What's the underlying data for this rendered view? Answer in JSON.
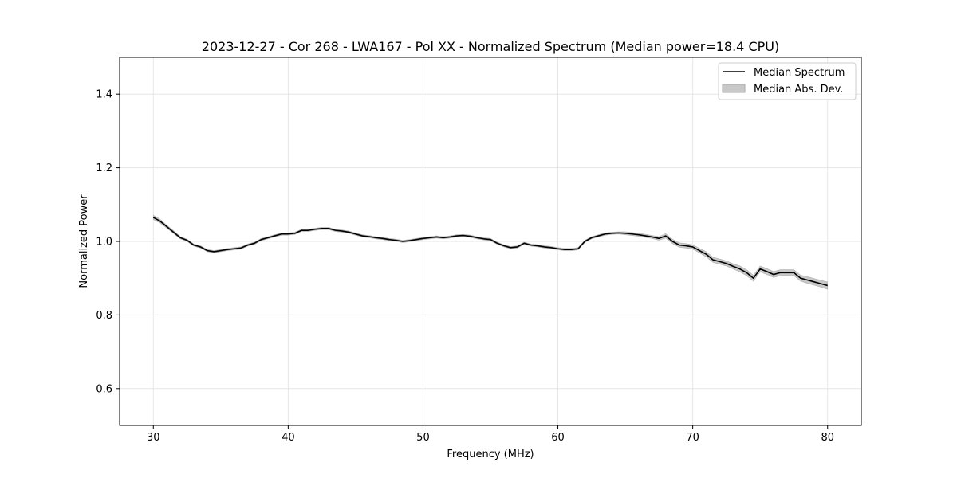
{
  "chart_data": {
    "type": "line",
    "title": "2023-12-27 - Cor 268 - LWA167 - Pol XX - Normalized Spectrum (Median power=18.4 CPU)",
    "xlabel": "Frequency (MHz)",
    "ylabel": "Normalized Power",
    "xlim": [
      27.5,
      82.5
    ],
    "ylim": [
      0.5,
      1.5
    ],
    "grid": true,
    "legend_position": "top-right",
    "x_ticks": [
      30,
      40,
      50,
      60,
      70,
      80
    ],
    "y_ticks": [
      0.6,
      0.8,
      1.0,
      1.2,
      1.4
    ],
    "x_tick_labels": [
      "30",
      "40",
      "50",
      "60",
      "70",
      "80"
    ],
    "y_tick_labels": [
      "0.6",
      "0.8",
      "1.0",
      "1.2",
      "1.4"
    ],
    "legend": {
      "line_label": "Median Spectrum",
      "band_label": "Median Abs. Dev."
    },
    "series": [
      {
        "name": "Median Spectrum",
        "color": "#000000",
        "x": [
          30,
          30.5,
          31,
          31.5,
          32,
          32.5,
          33,
          33.5,
          34,
          34.5,
          35,
          35.5,
          36,
          36.5,
          37,
          37.5,
          38,
          38.5,
          39,
          39.5,
          40,
          40.5,
          41,
          41.5,
          42,
          42.5,
          43,
          43.5,
          44,
          44.5,
          45,
          45.5,
          46,
          46.5,
          47,
          47.5,
          48,
          48.5,
          49,
          49.5,
          50,
          50.5,
          51,
          51.5,
          52,
          52.5,
          53,
          53.5,
          54,
          54.5,
          55,
          55.5,
          56,
          56.5,
          57,
          57.5,
          58,
          58.5,
          59,
          59.5,
          60,
          60.5,
          61,
          61.5,
          62,
          62.5,
          63,
          63.5,
          64,
          64.5,
          65,
          65.5,
          66,
          66.5,
          67,
          67.5,
          68,
          68.5,
          69,
          69.5,
          70,
          70.5,
          71,
          71.5,
          72,
          72.5,
          73,
          73.5,
          74,
          74.5,
          75,
          75.5,
          76,
          76.5,
          77,
          77.5,
          78,
          78.5,
          79,
          79.5,
          80
        ],
        "values": [
          1.065,
          1.055,
          1.04,
          1.025,
          1.01,
          1.003,
          0.99,
          0.985,
          0.975,
          0.972,
          0.975,
          0.978,
          0.98,
          0.982,
          0.99,
          0.995,
          1.005,
          1.01,
          1.015,
          1.02,
          1.02,
          1.022,
          1.03,
          1.03,
          1.033,
          1.035,
          1.035,
          1.03,
          1.028,
          1.025,
          1.02,
          1.015,
          1.013,
          1.01,
          1.008,
          1.005,
          1.003,
          1.0,
          1.002,
          1.005,
          1.008,
          1.01,
          1.012,
          1.01,
          1.012,
          1.015,
          1.016,
          1.014,
          1.01,
          1.007,
          1.005,
          0.995,
          0.988,
          0.983,
          0.985,
          0.995,
          0.99,
          0.988,
          0.985,
          0.983,
          0.98,
          0.978,
          0.978,
          0.98,
          1.0,
          1.01,
          1.015,
          1.02,
          1.022,
          1.023,
          1.022,
          1.02,
          1.018,
          1.015,
          1.012,
          1.008,
          1.015,
          1.0,
          0.99,
          0.988,
          0.985,
          0.975,
          0.965,
          0.95,
          0.945,
          0.94,
          0.932,
          0.925,
          0.915,
          0.9,
          0.925,
          0.918,
          0.91,
          0.915,
          0.915,
          0.915,
          0.9,
          0.895,
          0.89,
          0.885,
          0.88
        ]
      }
    ],
    "mad_band": {
      "name": "Median Abs. Dev.",
      "color": "#c8c8c8",
      "half_width": [
        0.006,
        0.005,
        0.004,
        0.004,
        0.003,
        0.003,
        0.003,
        0.003,
        0.003,
        0.003,
        0.003,
        0.003,
        0.003,
        0.003,
        0.003,
        0.003,
        0.003,
        0.003,
        0.003,
        0.003,
        0.003,
        0.003,
        0.003,
        0.003,
        0.003,
        0.003,
        0.003,
        0.003,
        0.003,
        0.003,
        0.003,
        0.003,
        0.003,
        0.003,
        0.003,
        0.003,
        0.003,
        0.003,
        0.003,
        0.003,
        0.003,
        0.003,
        0.003,
        0.003,
        0.003,
        0.003,
        0.003,
        0.003,
        0.003,
        0.003,
        0.003,
        0.003,
        0.003,
        0.003,
        0.003,
        0.003,
        0.003,
        0.003,
        0.003,
        0.003,
        0.003,
        0.003,
        0.003,
        0.003,
        0.003,
        0.003,
        0.003,
        0.003,
        0.003,
        0.003,
        0.004,
        0.004,
        0.004,
        0.004,
        0.004,
        0.005,
        0.006,
        0.006,
        0.006,
        0.006,
        0.006,
        0.006,
        0.007,
        0.007,
        0.007,
        0.007,
        0.007,
        0.008,
        0.008,
        0.008,
        0.008,
        0.008,
        0.008,
        0.008,
        0.008,
        0.008,
        0.008,
        0.009,
        0.009,
        0.009,
        0.01
      ]
    }
  }
}
